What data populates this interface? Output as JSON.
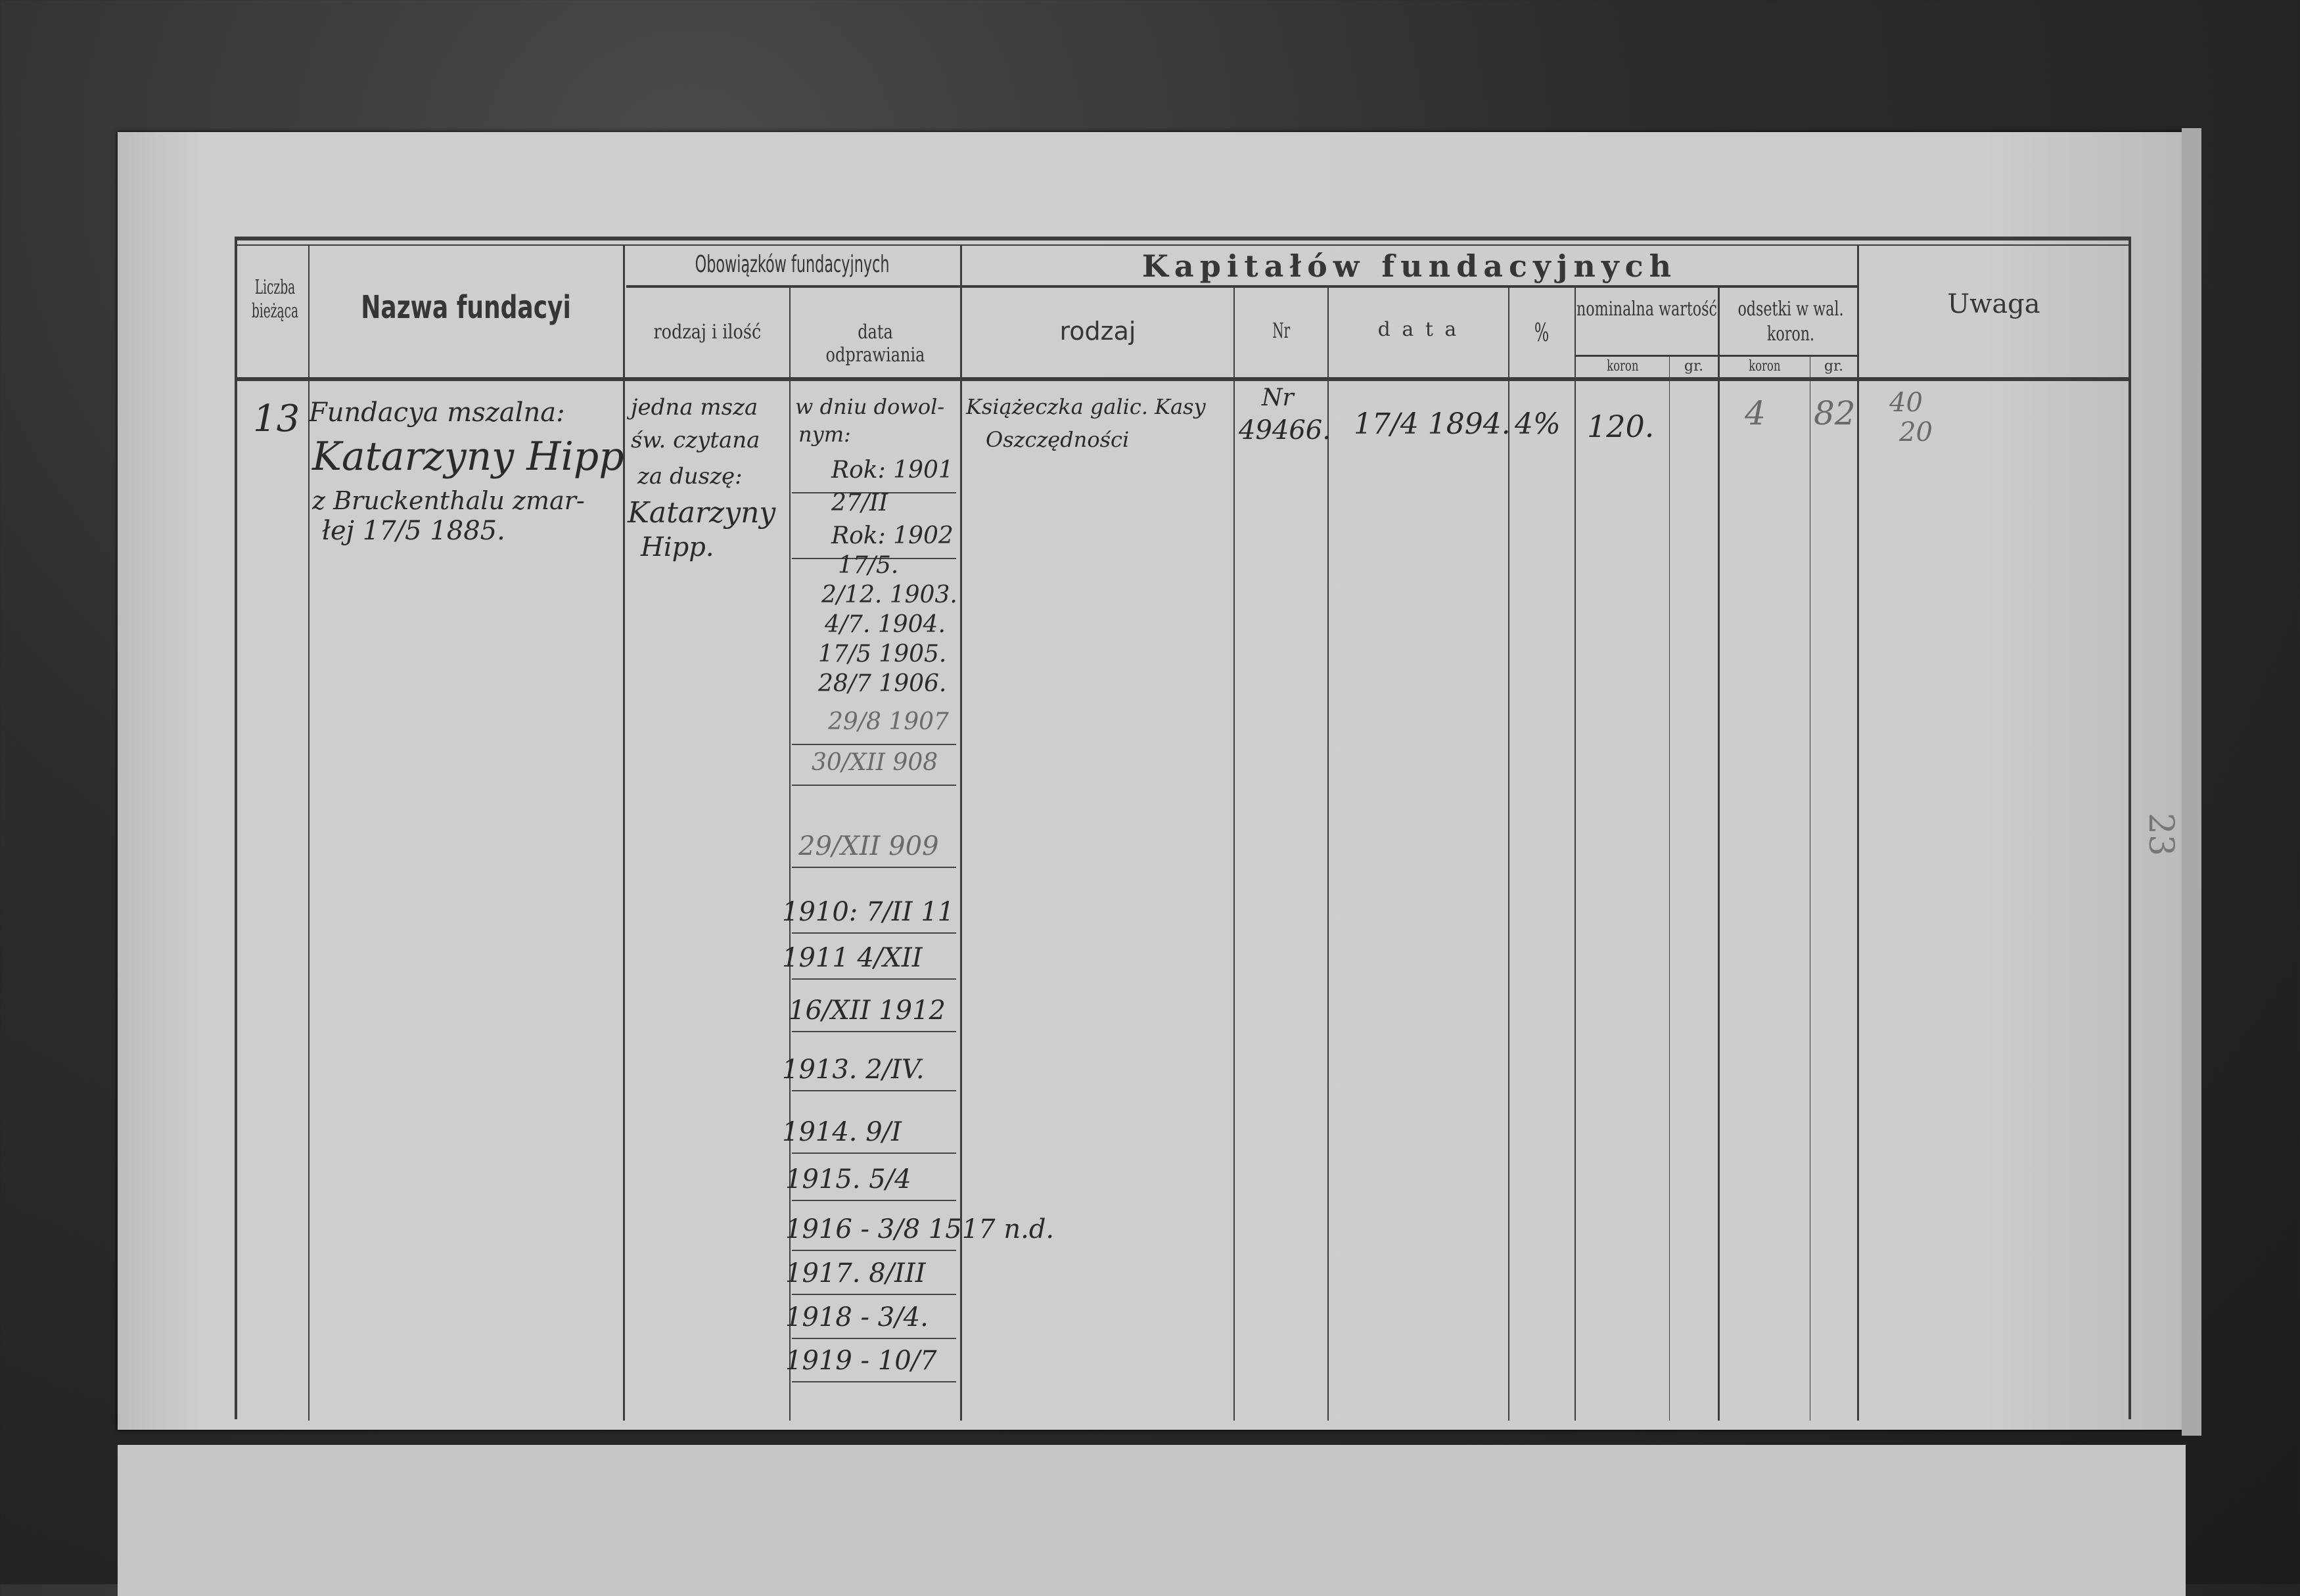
{
  "header": {
    "liczba": "Liczba bieżąca",
    "nazwa": "Nazwa fundacyi",
    "obowiazkow": "Obowiązków fundacyjnych",
    "obow_rodzaj": "rodzaj i ilość",
    "obow_data": "data odprawiania",
    "kapitalow": "Kapitałów fundacyjnych",
    "kap_rodzaj": "rodzaj",
    "kap_nr": "Nr",
    "kap_data": "d a t a",
    "kap_procent": "%",
    "nominalna": "nominalna wartość",
    "odsetki": "odsetki w wal. koron.",
    "koron": "koron",
    "gr": "gr.",
    "uwaga": "Uwaga"
  },
  "entry": {
    "liczba": "13",
    "nazwa": [
      "Fundacya mszalna:",
      "Katarzyny Hipp",
      "z Bruckenthalu zmar-",
      "łej 17/5 1885."
    ],
    "obow_rodzaj": [
      "jedna msza",
      "św. czytana",
      "za duszę:",
      "Katarzyny",
      "Hipp."
    ],
    "obow_data_intro": [
      "w dniu dowol-",
      "nym:"
    ],
    "obow_dates": [
      "Rok: 1901",
      "27/II",
      "Rok: 1902",
      "17/5.",
      "2/12. 1903.",
      "4/7. 1904.",
      "17/5 1905.",
      "28/7 1906.",
      "29/8 1907",
      "30/XII 908",
      "29/XII 909",
      "1910: 7/II 11",
      "1911 4/XII",
      "16/XII 1912",
      "1913. 2/IV.",
      "1914. 9/I",
      "1915. 5/4",
      "1916 - 3/8 1517 n.d.",
      "1917. 8/III",
      "1918 - 3/4.",
      "1919 - 10/7"
    ],
    "kap_rodzaj": [
      "Książeczka galic. Kasy",
      "Oszczędności"
    ],
    "kap_nr": [
      "Nr",
      "49466."
    ],
    "kap_data": "17/4 1894.",
    "kap_procent": "4%",
    "nominal_koron": "120.",
    "nominal_gr": "",
    "odsetki_koron": "4",
    "odsetki_gr": "82",
    "uwaga": [
      "40",
      "20"
    ]
  },
  "page_number": "23"
}
